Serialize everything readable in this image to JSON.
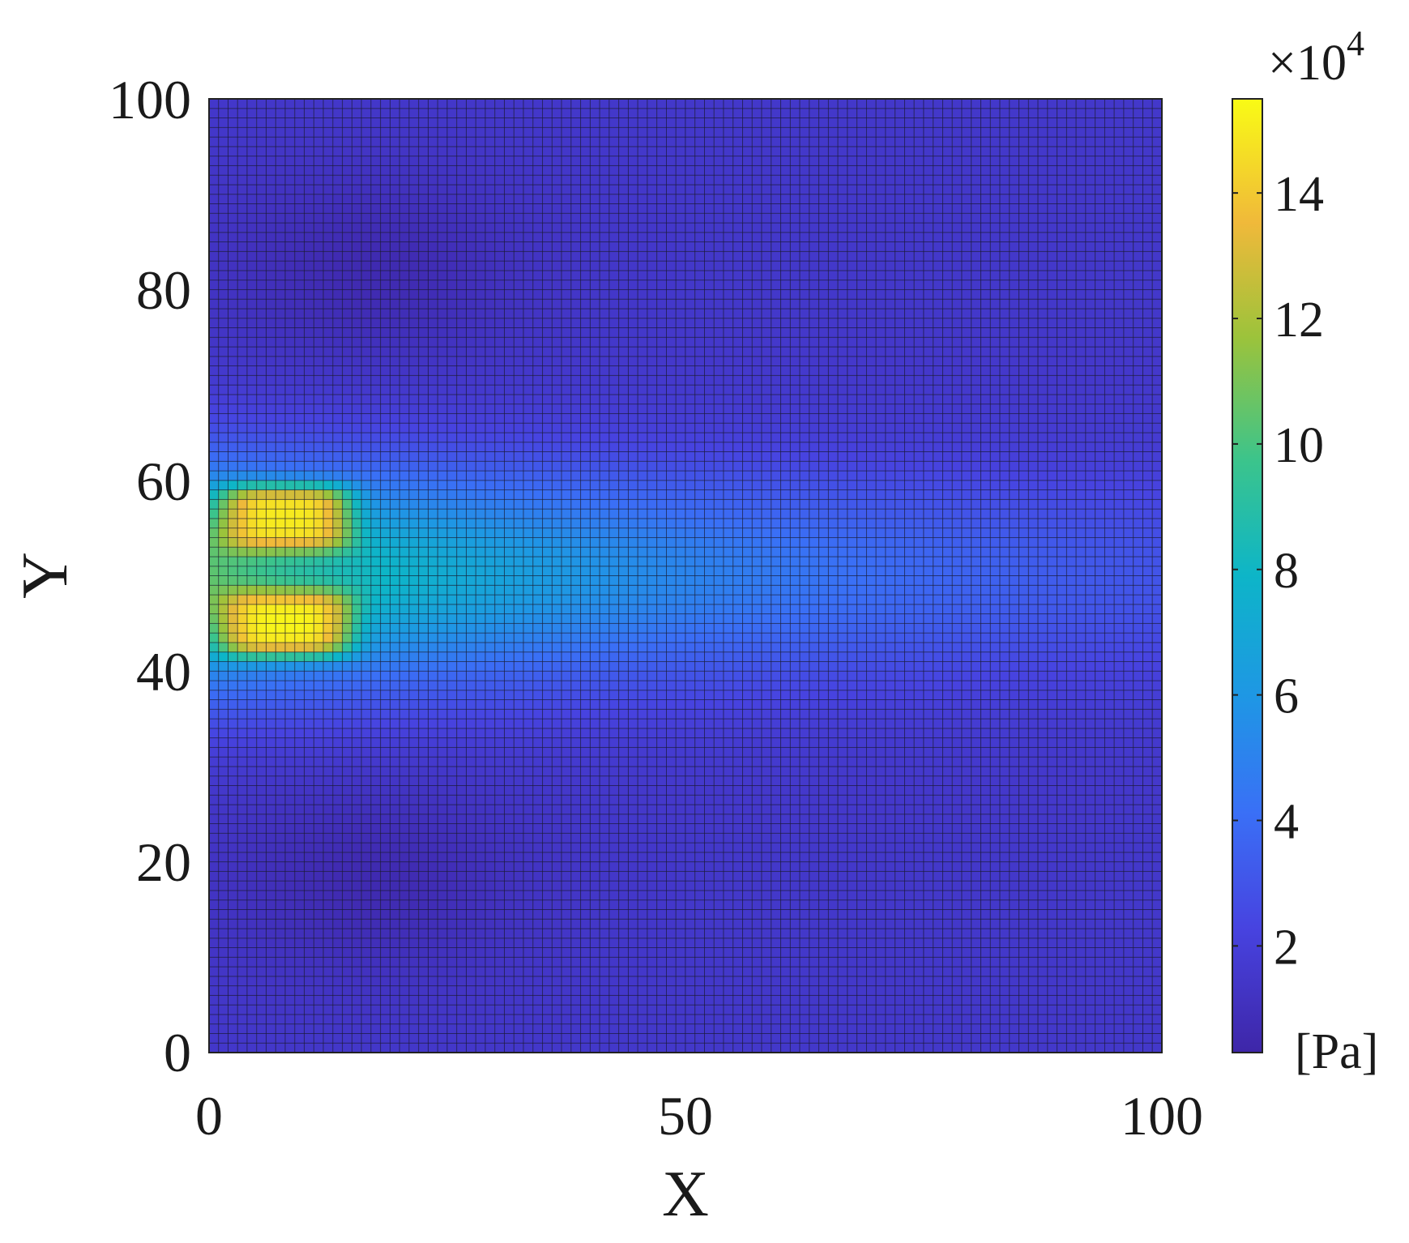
{
  "chart_data": {
    "type": "heatmap",
    "title": "",
    "xlabel": "X",
    "ylabel": "Y",
    "xlim": [
      0,
      100
    ],
    "ylim": [
      0,
      100
    ],
    "xticks": [
      "0",
      "50",
      "100"
    ],
    "yticks": [
      "0",
      "20",
      "40",
      "60",
      "80",
      "100"
    ],
    "grid": true,
    "grid_cells": [
      100,
      100
    ],
    "colormap": "parula",
    "colorbar": {
      "range": [
        0.3,
        15.5
      ],
      "ticks": [
        "2",
        "4",
        "6",
        "8",
        "10",
        "12",
        "14"
      ],
      "multiplier_base": "×10",
      "multiplier_exponent": "4",
      "unit": "[Pa]",
      "placement": "right"
    },
    "field": {
      "description_units": "Pa ×10^4",
      "background": 1.5,
      "hotspots": [
        {
          "x": 8,
          "y": 56,
          "peak": 15.0,
          "sx": 7,
          "sy": 3.5
        },
        {
          "x": 8,
          "y": 45,
          "peak": 15.3,
          "sx": 7,
          "sy": 3.5
        }
      ],
      "plume": {
        "center_y": 50,
        "peak_at_x0": 9.0,
        "decay_x": 55,
        "width_y": 11
      },
      "dark_spots": [
        {
          "x": 17,
          "y": 82,
          "depth": 0.9
        },
        {
          "x": 17,
          "y": 18,
          "depth": 0.9
        }
      ]
    }
  }
}
